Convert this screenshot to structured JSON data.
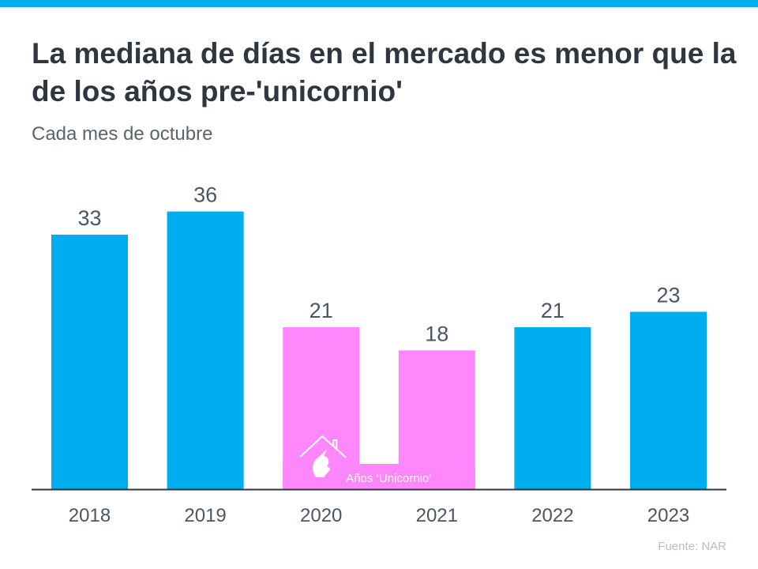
{
  "colors": {
    "primary": "#00aeef",
    "unicorn": "#ff86fb",
    "axis": "#2f3640",
    "label": "#4c5561"
  },
  "chart_data": {
    "type": "bar",
    "title": "La mediana de días en el mercado es menor que la de los años pre-'unicornio'",
    "subtitle": "Cada mes de octubre",
    "categories": [
      "2018",
      "2019",
      "2020",
      "2021",
      "2022",
      "2023"
    ],
    "values": [
      33,
      36,
      21,
      18,
      21,
      23
    ],
    "highlighted": [
      false,
      false,
      true,
      true,
      false,
      false
    ],
    "highlight_label": "Años ‘Unicornio’",
    "xlabel": "",
    "ylabel": "",
    "ylim": [
      0,
      40
    ],
    "grid": false,
    "source": "Fuente:  NAR"
  }
}
